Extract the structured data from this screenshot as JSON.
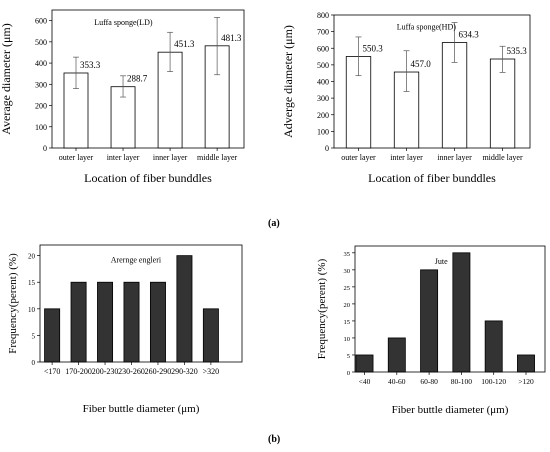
{
  "panel_labels": [
    "(a)",
    "(b)"
  ],
  "chart_data": [
    {
      "type": "bar",
      "title": "Luffa sponge(LD)",
      "categories": [
        "outer layer",
        "inter layer",
        "inner layer",
        "middle layer"
      ],
      "values": [
        353.3,
        288.7,
        451.3,
        481.3
      ],
      "value_labels": [
        "353.3",
        "288.7",
        "451.3",
        "481.3"
      ],
      "error_low": [
        280,
        240,
        360,
        345
      ],
      "error_high": [
        428,
        340,
        545,
        615
      ],
      "xlabel": "Location of fiber bunddles",
      "ylabel": "Average diameter (μm)",
      "ylim": [
        0,
        650
      ],
      "yticks": [
        0,
        100,
        200,
        300,
        400,
        500,
        600
      ],
      "bar_style": "hollow",
      "grid": false
    },
    {
      "type": "bar",
      "title": "Luffa sponge(HD)",
      "categories": [
        "outer layer",
        "inter layer",
        "inner layer",
        "middle layer"
      ],
      "values": [
        550.3,
        457.0,
        634.3,
        535.3
      ],
      "value_labels": [
        "550.3",
        "457.0",
        "634.3",
        "535.3"
      ],
      "error_low": [
        435,
        340,
        515,
        455
      ],
      "error_high": [
        668,
        585,
        755,
        612
      ],
      "xlabel": "Location of fiber bunddles",
      "ylabel": "Adverge diameter (μm)",
      "ylim": [
        0,
        800
      ],
      "yticks": [
        0,
        100,
        200,
        300,
        400,
        500,
        600,
        700,
        800
      ],
      "bar_style": "hollow",
      "grid": false
    },
    {
      "type": "bar",
      "title": "Arernge engleri",
      "categories": [
        "<170",
        "170-200",
        "200-230",
        "230-260",
        "260-290",
        "290-320",
        ">320"
      ],
      "values": [
        10,
        15,
        15,
        15,
        15,
        20,
        10
      ],
      "xlabel": "Fiber buttle diameter (μm)",
      "ylabel": "Frequency(perent) (%)",
      "ylim": [
        0,
        22
      ],
      "yticks": [
        0,
        5,
        10,
        15,
        20
      ],
      "bar_style": "filled",
      "bar_color": "#333333",
      "grid": false
    },
    {
      "type": "bar",
      "title": "Jute",
      "categories": [
        "<40",
        "40-60",
        "60-80",
        "80-100",
        "100-120",
        ">120"
      ],
      "values": [
        5,
        10,
        30,
        35,
        15,
        5
      ],
      "xlabel": "Fiber buttle diameter (μm)",
      "ylabel": "Frequency(perent) (%)",
      "ylim": [
        0,
        37
      ],
      "yticks": [
        0,
        5,
        10,
        15,
        20,
        25,
        30,
        35
      ],
      "bar_style": "filled",
      "bar_color": "#333333",
      "grid": false
    }
  ]
}
